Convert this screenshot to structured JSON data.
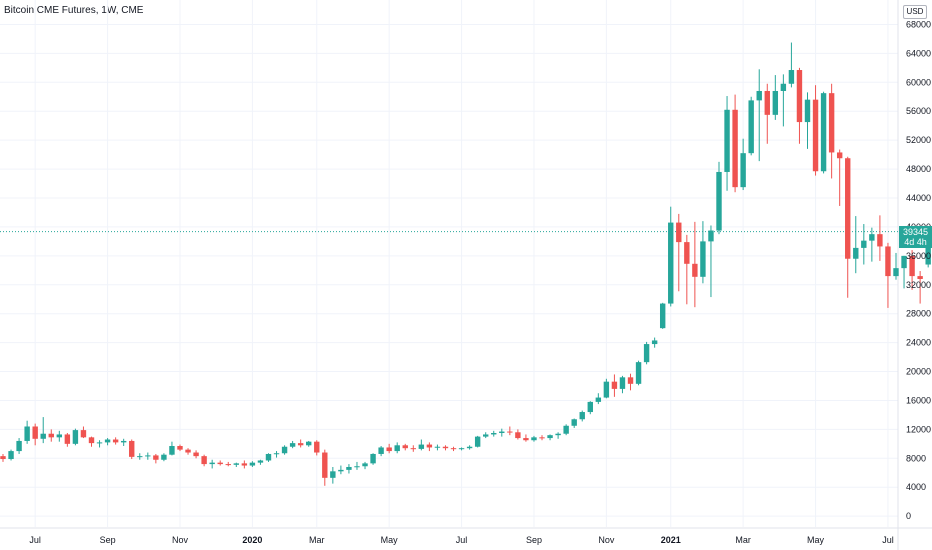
{
  "title": "Bitcoin CME Futures, 1W, CME",
  "currency_button": "USD",
  "last_price": {
    "value": "39345",
    "countdown": "4d 4h",
    "color": "#26a69a"
  },
  "colors": {
    "up": "#26a69a",
    "down": "#ef5350",
    "grid": "#f0f3fa",
    "price_line": "#26a69a"
  },
  "chart_data": {
    "type": "candlestick",
    "title": "Bitcoin CME Futures, 1W, CME",
    "interval": "1W",
    "ylim": [
      -1500,
      70000
    ],
    "y_ticks": [
      0,
      4000,
      8000,
      12000,
      16000,
      20000,
      24000,
      28000,
      32000,
      36000,
      40000,
      44000,
      48000,
      52000,
      56000,
      60000,
      64000,
      68000
    ],
    "y_tick_labels": [
      "0",
      "4000",
      "8000",
      "12000",
      "16000",
      "20000",
      "24000",
      "28000",
      "32000",
      "36000",
      "40000",
      "44000",
      "48000",
      "52000",
      "56000",
      "60000",
      "64000",
      "68000"
    ],
    "x_ticks": [
      {
        "label": "Jul",
        "index": 4,
        "bold": false
      },
      {
        "label": "Sep",
        "index": 13,
        "bold": false
      },
      {
        "label": "Nov",
        "index": 22,
        "bold": false
      },
      {
        "label": "2020",
        "index": 31,
        "bold": true
      },
      {
        "label": "Mar",
        "index": 39,
        "bold": false
      },
      {
        "label": "May",
        "index": 48,
        "bold": false
      },
      {
        "label": "Jul",
        "index": 57,
        "bold": false
      },
      {
        "label": "Sep",
        "index": 66,
        "bold": false
      },
      {
        "label": "Nov",
        "index": 75,
        "bold": false
      },
      {
        "label": "2021",
        "index": 83,
        "bold": true
      },
      {
        "label": "Mar",
        "index": 92,
        "bold": false
      },
      {
        "label": "May",
        "index": 101,
        "bold": false
      },
      {
        "label": "Jul",
        "index": 110,
        "bold": false
      }
    ],
    "grid": true,
    "last_price": 39345,
    "candles": [
      [
        8300,
        8600,
        7500,
        7900
      ],
      [
        7900,
        9200,
        7700,
        9000
      ],
      [
        9000,
        10800,
        8600,
        10400
      ],
      [
        10400,
        13200,
        10000,
        12400
      ],
      [
        12400,
        12800,
        9800,
        10700
      ],
      [
        10700,
        13700,
        10100,
        11400
      ],
      [
        11400,
        12000,
        10300,
        10900
      ],
      [
        10900,
        11800,
        10300,
        11300
      ],
      [
        11300,
        11500,
        9600,
        10000
      ],
      [
        10000,
        12100,
        9800,
        11900
      ],
      [
        11900,
        12400,
        10800,
        10900
      ],
      [
        10900,
        11000,
        9600,
        10100
      ],
      [
        10100,
        10500,
        9500,
        10200
      ],
      [
        10200,
        10800,
        9800,
        10600
      ],
      [
        10600,
        10900,
        9900,
        10200
      ],
      [
        10200,
        10700,
        9700,
        10400
      ],
      [
        10400,
        10600,
        7900,
        8200
      ],
      [
        8200,
        8700,
        7800,
        8300
      ],
      [
        8300,
        8800,
        7800,
        8400
      ],
      [
        8400,
        8600,
        7300,
        7800
      ],
      [
        7800,
        8700,
        7600,
        8500
      ],
      [
        8500,
        10300,
        8400,
        9700
      ],
      [
        9700,
        9900,
        9000,
        9200
      ],
      [
        9200,
        9400,
        8500,
        8800
      ],
      [
        8800,
        9100,
        8000,
        8300
      ],
      [
        8300,
        8500,
        6900,
        7200
      ],
      [
        7200,
        7800,
        6600,
        7400
      ],
      [
        7400,
        7700,
        7000,
        7200
      ],
      [
        7200,
        7500,
        6900,
        7100
      ],
      [
        7100,
        7400,
        6800,
        7300
      ],
      [
        7300,
        7700,
        6600,
        7000
      ],
      [
        7000,
        7600,
        6800,
        7400
      ],
      [
        7400,
        7800,
        7100,
        7700
      ],
      [
        7700,
        8700,
        7500,
        8600
      ],
      [
        8600,
        9000,
        8100,
        8700
      ],
      [
        8700,
        9800,
        8500,
        9600
      ],
      [
        9600,
        10400,
        9400,
        10100
      ],
      [
        10100,
        10600,
        9500,
        9800
      ],
      [
        9800,
        10400,
        9600,
        10300
      ],
      [
        10300,
        10500,
        8400,
        8800
      ],
      [
        8800,
        9200,
        4200,
        5300
      ],
      [
        5300,
        6800,
        4500,
        6200
      ],
      [
        6200,
        7000,
        5800,
        6400
      ],
      [
        6400,
        7200,
        5900,
        6800
      ],
      [
        6800,
        7500,
        6400,
        6900
      ],
      [
        6900,
        7500,
        6500,
        7300
      ],
      [
        7300,
        8700,
        7100,
        8600
      ],
      [
        8600,
        9700,
        8300,
        9500
      ],
      [
        9500,
        10000,
        8700,
        9000
      ],
      [
        9000,
        10200,
        8700,
        9800
      ],
      [
        9800,
        10000,
        9100,
        9400
      ],
      [
        9400,
        9800,
        8900,
        9300
      ],
      [
        9300,
        10600,
        9100,
        9900
      ],
      [
        9900,
        10200,
        9000,
        9500
      ],
      [
        9500,
        9900,
        9100,
        9600
      ],
      [
        9600,
        9800,
        9100,
        9400
      ],
      [
        9400,
        9600,
        9000,
        9300
      ],
      [
        9300,
        9500,
        9100,
        9400
      ],
      [
        9400,
        9800,
        9200,
        9600
      ],
      [
        9600,
        11100,
        9500,
        11000
      ],
      [
        11000,
        11600,
        10800,
        11300
      ],
      [
        11300,
        11800,
        11000,
        11500
      ],
      [
        11500,
        12100,
        11000,
        11700
      ],
      [
        11700,
        12400,
        11200,
        11600
      ],
      [
        11600,
        12000,
        10600,
        10800
      ],
      [
        10800,
        11300,
        10300,
        10500
      ],
      [
        10500,
        11100,
        10300,
        10900
      ],
      [
        10900,
        11200,
        10500,
        10800
      ],
      [
        10800,
        11300,
        10500,
        11200
      ],
      [
        11200,
        11600,
        10700,
        11400
      ],
      [
        11400,
        12700,
        11200,
        12500
      ],
      [
        12500,
        13500,
        12200,
        13400
      ],
      [
        13400,
        14600,
        13100,
        14400
      ],
      [
        14400,
        15900,
        14100,
        15800
      ],
      [
        15800,
        17000,
        15500,
        16400
      ],
      [
        16400,
        19000,
        16300,
        18600
      ],
      [
        18600,
        19600,
        16500,
        17600
      ],
      [
        17600,
        19400,
        17000,
        19200
      ],
      [
        19200,
        19700,
        17400,
        18300
      ],
      [
        18300,
        21500,
        18100,
        21300
      ],
      [
        21300,
        24100,
        21000,
        23800
      ],
      [
        23800,
        24700,
        23300,
        24300
      ],
      [
        26000,
        29500,
        25900,
        29400
      ],
      [
        29400,
        42800,
        29000,
        40600
      ],
      [
        40600,
        41800,
        31100,
        37900
      ],
      [
        37900,
        38900,
        29300,
        34900
      ],
      [
        34900,
        40700,
        28900,
        33100
      ],
      [
        33100,
        40800,
        32200,
        38000
      ],
      [
        38000,
        40200,
        30300,
        39500
      ],
      [
        39500,
        49000,
        39000,
        47600
      ],
      [
        47600,
        58100,
        45000,
        56200
      ],
      [
        56200,
        58300,
        44800,
        45500
      ],
      [
        45500,
        52200,
        45100,
        50200
      ],
      [
        50200,
        58000,
        49900,
        57500
      ],
      [
        57500,
        61800,
        49100,
        58800
      ],
      [
        58800,
        59800,
        51500,
        55500
      ],
      [
        55500,
        61000,
        54800,
        58800
      ],
      [
        58800,
        61100,
        53900,
        59800
      ],
      [
        59800,
        65500,
        59300,
        61700
      ],
      [
        61700,
        62000,
        51500,
        54500
      ],
      [
        54500,
        58600,
        50800,
        57600
      ],
      [
        57600,
        59600,
        47100,
        47700
      ],
      [
        47700,
        58700,
        47400,
        58500
      ],
      [
        58500,
        59800,
        46700,
        50300
      ],
      [
        50300,
        50700,
        42900,
        49500
      ],
      [
        49500,
        49700,
        30200,
        35600
      ],
      [
        35600,
        41500,
        33600,
        37100
      ],
      [
        37100,
        40400,
        34800,
        38100
      ],
      [
        38100,
        39900,
        35200,
        39000
      ],
      [
        39000,
        41600,
        35300,
        37300
      ],
      [
        37300,
        37800,
        28800,
        33200
      ],
      [
        33200,
        36400,
        32700,
        34300
      ],
      [
        34300,
        36000,
        31500,
        36000
      ],
      [
        36000,
        36800,
        31300,
        33200
      ],
      [
        33200,
        33900,
        29400,
        32800
      ],
      [
        34800,
        39700,
        34400,
        39345
      ]
    ]
  }
}
